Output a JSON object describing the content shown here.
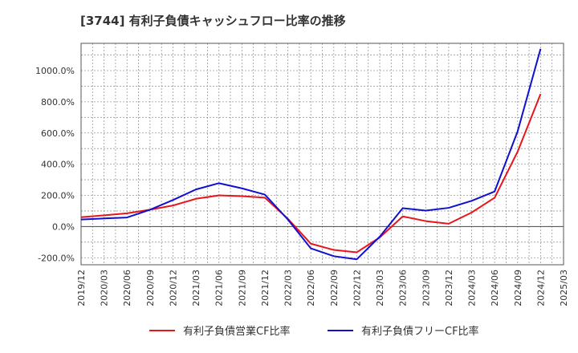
{
  "colors": {
    "series_1": "#e8151b",
    "series_2": "#1010d0",
    "grid": "#999999",
    "zero_line": "#444444",
    "axis": "#555555",
    "text": "#333333"
  },
  "chart_data": {
    "type": "line",
    "title": "[3744]  有利子負債キャッシュフロー比率の推移",
    "xlabel": "",
    "ylabel": "",
    "x": [
      "2019/12",
      "2020/03",
      "2020/06",
      "2020/09",
      "2020/12",
      "2021/03",
      "2021/06",
      "2021/09",
      "2021/12",
      "2022/03",
      "2022/06",
      "2022/09",
      "2022/12",
      "2023/03",
      "2023/06",
      "2023/09",
      "2023/12",
      "2024/03",
      "2024/06",
      "2024/09",
      "2024/12"
    ],
    "x_ticks": [
      "2019/12",
      "2020/03",
      "2020/06",
      "2020/09",
      "2020/12",
      "2021/03",
      "2021/06",
      "2021/09",
      "2021/12",
      "2022/03",
      "2022/06",
      "2022/09",
      "2022/12",
      "2023/03",
      "2023/06",
      "2023/09",
      "2023/12",
      "2024/03",
      "2024/06",
      "2024/09",
      "2024/12",
      "2025/03"
    ],
    "y_ticks": [
      -200,
      0,
      200,
      400,
      600,
      800,
      1000
    ],
    "y_tick_labels": [
      "-200.0%",
      "0.0%",
      "200.0%",
      "400.0%",
      "600.0%",
      "800.0%",
      "1000.0%"
    ],
    "ylim": [
      -245,
      1175
    ],
    "grid": true,
    "legend_position": "bottom",
    "series": [
      {
        "name": "有利子負債営業CF比率",
        "color": "#e8151b",
        "values": [
          60,
          72,
          85,
          108,
          135,
          178,
          200,
          195,
          185,
          50,
          -110,
          -150,
          -165,
          -70,
          65,
          35,
          18,
          90,
          185,
          480,
          850
        ]
      },
      {
        "name": "有利子負債フリーCF比率",
        "color": "#1010d0",
        "values": [
          45,
          52,
          58,
          108,
          170,
          238,
          278,
          245,
          205,
          45,
          -140,
          -190,
          -210,
          -65,
          118,
          102,
          120,
          165,
          225,
          610,
          1140
        ]
      }
    ]
  }
}
